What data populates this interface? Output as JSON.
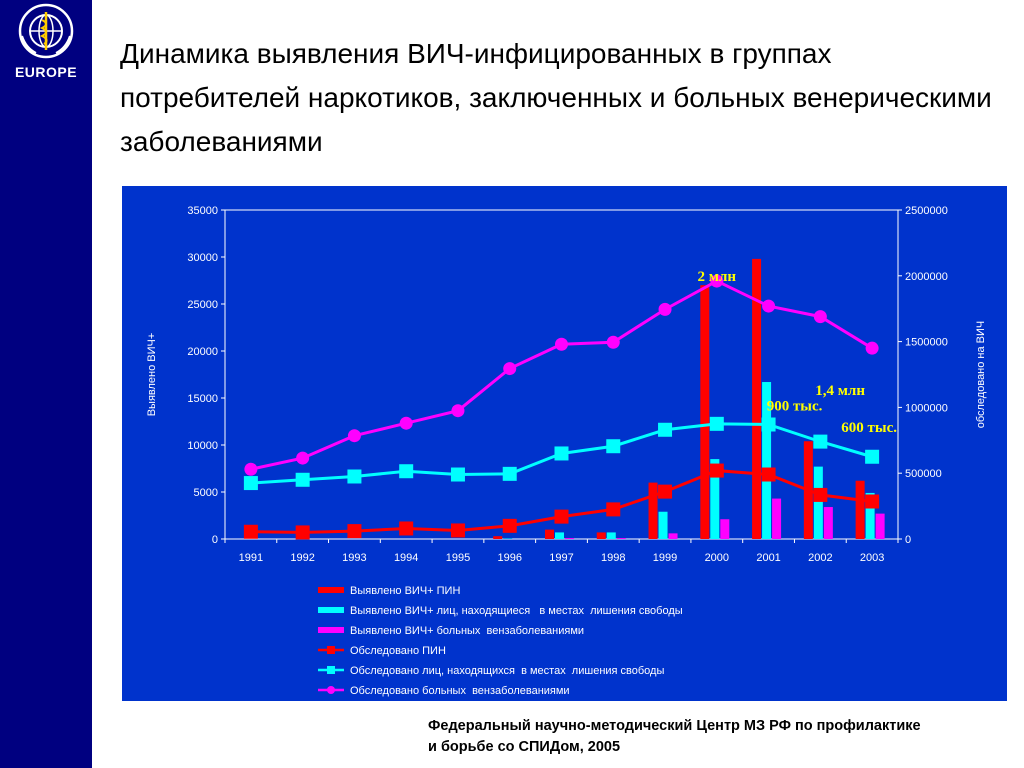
{
  "logo": {
    "ring_text": "WORLD HEALTH ORGANIZATION",
    "region": "EUROPE"
  },
  "title": "Динамика выявления ВИЧ-инфицированных в группах потребителей наркотиков, заключенных и больных венерическими заболеваниями",
  "footer": {
    "line1": "Федеральный научно-методический Центр МЗ РФ по профилактике",
    "line2": "и борьбе со СПИДом, 2005"
  },
  "colors": {
    "sidebar": "#000080",
    "chart_bg": "#0033cc",
    "red": "#ff0000",
    "cyan": "#00ffff",
    "magenta": "#ff00ff",
    "annotation": "#ffff00"
  },
  "chart_data": {
    "type": "bar",
    "title": "",
    "xlabel": "",
    "ylabel": "Выявлено ВИЧ+",
    "y2label": "обследовано на ВИЧ",
    "categories": [
      "1991",
      "1992",
      "1993",
      "1994",
      "1995",
      "1996",
      "1997",
      "1998",
      "1999",
      "2000",
      "2001",
      "2002",
      "2003"
    ],
    "ylim": [
      0,
      35000
    ],
    "y2lim": [
      0,
      2500000
    ],
    "yticks": [
      "0",
      "5000",
      "10000",
      "15000",
      "20000",
      "25000",
      "30000",
      "35000"
    ],
    "y2ticks": [
      "0",
      "500000",
      "1000000",
      "1500000",
      "2000000",
      "2500000"
    ],
    "legend_position": "bottom",
    "bar_series": [
      {
        "name": "Выявлено ВИЧ+ ПИН",
        "color": "#ff0000",
        "axis": "left",
        "values": [
          0,
          0,
          0,
          0,
          0,
          300,
          1000,
          700,
          6000,
          27000,
          29800,
          10400,
          6200
        ]
      },
      {
        "name": "Выявлено ВИЧ+ лиц, находящиеся   в местах  лишения свободы",
        "color": "#00ffff",
        "axis": "left",
        "values": [
          0,
          0,
          0,
          0,
          0,
          50,
          700,
          700,
          2900,
          8500,
          16700,
          7700,
          4900
        ]
      },
      {
        "name": "Выявлено ВИЧ+ больных  вензаболеваниями",
        "color": "#ff00ff",
        "axis": "left",
        "values": [
          0,
          0,
          0,
          0,
          0,
          0,
          100,
          100,
          600,
          2100,
          4300,
          3400,
          2700
        ]
      }
    ],
    "line_series": [
      {
        "name": "Обследовано ПИН",
        "color": "#ff0000",
        "marker": "square",
        "axis": "right",
        "values": [
          55000,
          50000,
          60000,
          80000,
          65000,
          100000,
          170000,
          225000,
          360000,
          520000,
          490000,
          335000,
          285000
        ]
      },
      {
        "name": "Обследовано лиц, находящихся  в местах  лишения свободы",
        "color": "#00ffff",
        "marker": "square",
        "axis": "right",
        "values": [
          425000,
          450000,
          475000,
          515000,
          490000,
          495000,
          650000,
          705000,
          830000,
          875000,
          870000,
          740000,
          625000
        ]
      },
      {
        "name": "Обследовано больных  вензаболеваниями",
        "color": "#ff00ff",
        "marker": "circle",
        "axis": "right",
        "values": [
          530000,
          615000,
          785000,
          880000,
          975000,
          1295000,
          1480000,
          1495000,
          1745000,
          1960000,
          1770000,
          1690000,
          1450000
        ]
      }
    ],
    "annotations": [
      {
        "text": "2 млн",
        "year": "2000"
      },
      {
        "text": "1,4 млн",
        "year": "2003"
      },
      {
        "text": "900 тыс.",
        "year": "2001"
      },
      {
        "text": "600 тыс.",
        "year": "2003"
      }
    ]
  }
}
